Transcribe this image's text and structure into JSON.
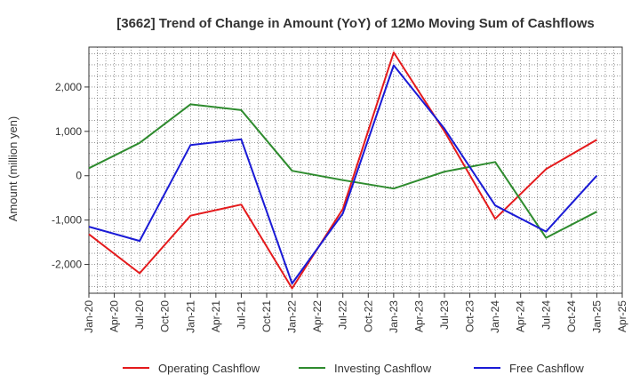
{
  "chart_data": {
    "type": "line",
    "title": "[3662]  Trend of Change in Amount (YoY) of 12Mo Moving Sum of Cashflows",
    "ylabel": "Amount (million yen)",
    "xlabel": "",
    "ylim": [
      -2650,
      2900
    ],
    "yticks": [
      2000,
      1000,
      0,
      -1000,
      -2000
    ],
    "ytick_labels": [
      "2,000",
      "1,000",
      "0",
      "-1,000",
      "-2,000"
    ],
    "x_labels": [
      "Jan-20",
      "Apr-20",
      "Jul-20",
      "Oct-20",
      "Jan-21",
      "Apr-21",
      "Jul-21",
      "Oct-21",
      "Jan-22",
      "Apr-22",
      "Jul-22",
      "Oct-22",
      "Jan-23",
      "Apr-23",
      "Jul-23",
      "Oct-23",
      "Jan-24",
      "Apr-24",
      "Jul-24",
      "Oct-24",
      "Jan-25",
      "Apr-25"
    ],
    "grid": true,
    "series": [
      {
        "name": "Operating Cashflow",
        "color": "#e41a1c",
        "x": [
          0,
          2,
          4,
          6,
          8,
          10,
          12,
          14,
          16,
          18,
          20
        ],
        "values": [
          -1320,
          -2200,
          -900,
          -650,
          -2540,
          -750,
          2780,
          1000,
          -970,
          150,
          810
        ]
      },
      {
        "name": "Investing Cashflow",
        "color": "#2e8b2e",
        "x": [
          0,
          2,
          4,
          6,
          8,
          10,
          12,
          14,
          16,
          18,
          20
        ],
        "values": [
          170,
          740,
          1610,
          1480,
          110,
          -100,
          -290,
          90,
          310,
          -1400,
          -810
        ]
      },
      {
        "name": "Free Cashflow",
        "color": "#1a1ad6",
        "x": [
          0,
          2,
          4,
          6,
          8,
          10,
          12,
          14,
          16,
          18,
          20
        ],
        "values": [
          -1150,
          -1470,
          690,
          820,
          -2430,
          -850,
          2490,
          1060,
          -670,
          -1260,
          0
        ]
      }
    ],
    "legend_position": "bottom"
  }
}
